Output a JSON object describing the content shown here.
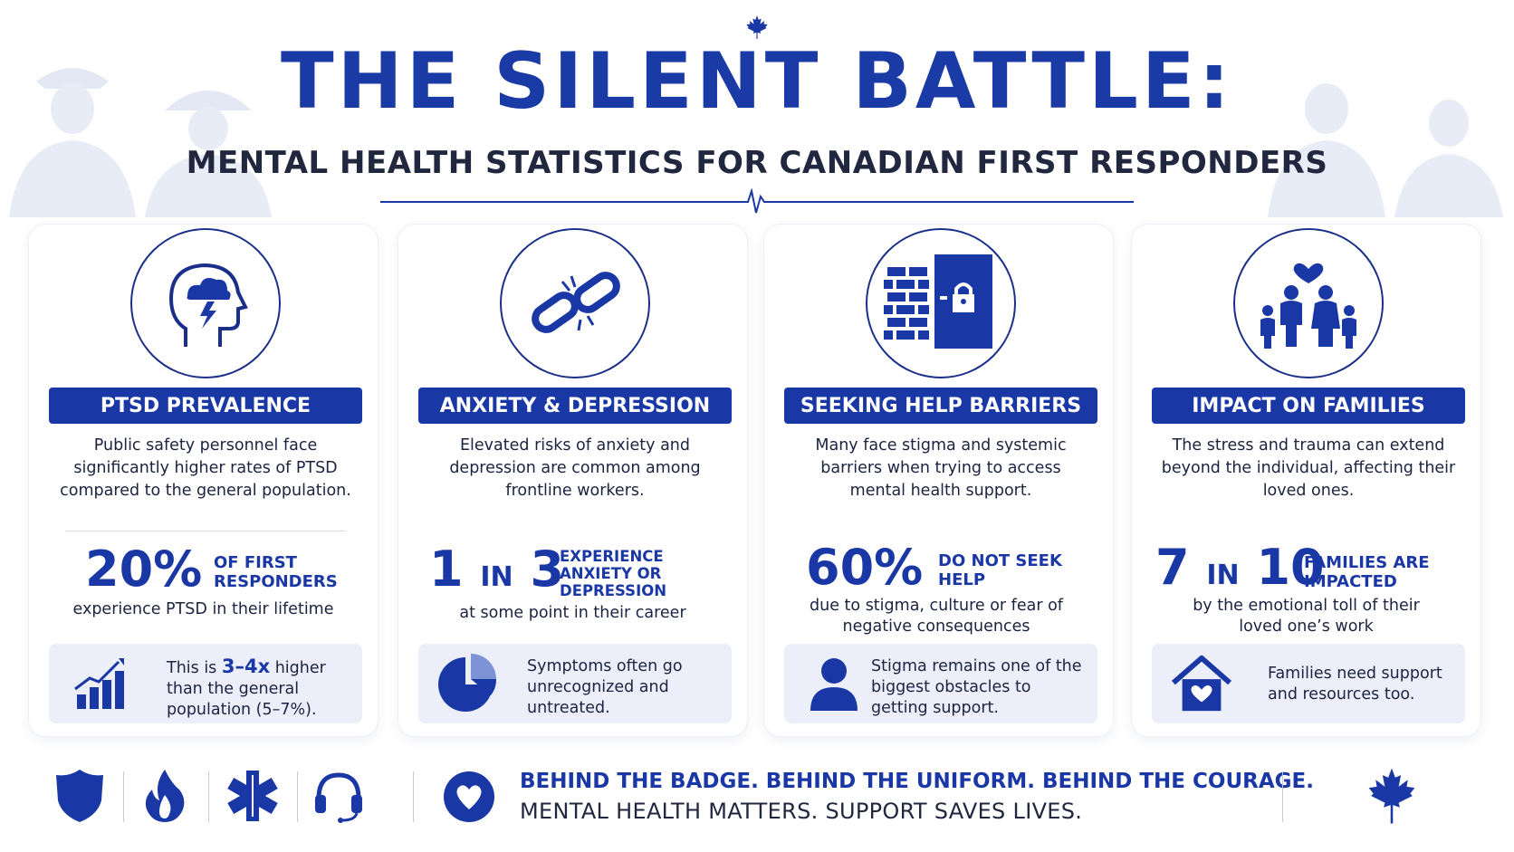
{
  "header": {
    "title": "THE SILENT BATTLE:",
    "subtitle": "MENTAL HEALTH STATISTICS FOR CANADIAN FIRST RESPONDERS"
  },
  "colors": {
    "primary": "#1a37a6",
    "text": "#1c2340",
    "note_bg": "#eceffa"
  },
  "cards": [
    {
      "icon": "head-storm-icon",
      "heading": "PTSD PREVALENCE",
      "description": "Public safety personnel face significantly higher rates of PTSD compared to the general population.",
      "stat_value": "20%",
      "stat_label": "OF FIRST RESPONDERS",
      "stat_sub": "experience PTSD in their lifetime",
      "note_icon": "bar-chart-growth-icon",
      "note_prefix": "This is ",
      "note_highlight": "3–4x",
      "note_suffix": " higher than the general population (5–7%)."
    },
    {
      "icon": "broken-chain-icon",
      "heading": "ANXIETY & DEPRESSION",
      "description": "Elevated risks of anxiety and depression are common among frontline workers.",
      "stat_num1": "1",
      "stat_in": "IN",
      "stat_num2": "3",
      "stat_label": "EXPERIENCE ANXIETY OR DEPRESSION",
      "stat_sub": "at some point in their career",
      "note_icon": "pie-chart-icon",
      "note_text": "Symptoms often go unrecognized and untreated."
    },
    {
      "icon": "brick-wall-lock-icon",
      "heading": "SEEKING HELP BARRIERS",
      "description": "Many face stigma and systemic barriers when trying to access mental health support.",
      "stat_value": "60%",
      "stat_label": "DO NOT SEEK HELP",
      "stat_sub": "due to stigma, culture or fear of negative consequences",
      "note_icon": "person-icon",
      "note_text": "Stigma remains one of the biggest obstacles to getting support."
    },
    {
      "icon": "family-heart-icon",
      "heading": "IMPACT ON FAMILIES",
      "description": "The stress and trauma can extend beyond the individual, affecting their loved ones.",
      "stat_num1": "7",
      "stat_in": "IN",
      "stat_num2": "10",
      "stat_label": "FAMILIES ARE IMPACTED",
      "stat_sub": "by the emotional toll of their loved one’s work",
      "note_icon": "house-heart-icon",
      "note_text": "Families need support and resources too."
    }
  ],
  "footer": {
    "icons": [
      "police-badge-icon",
      "flame-icon",
      "star-of-life-icon",
      "headset-icon",
      "heart-icon",
      "maple-leaf-icon"
    ],
    "line1": "BEHIND THE BADGE. BEHIND THE UNIFORM. BEHIND THE COURAGE.",
    "line2": "MENTAL HEALTH MATTERS. SUPPORT SAVES LIVES."
  }
}
